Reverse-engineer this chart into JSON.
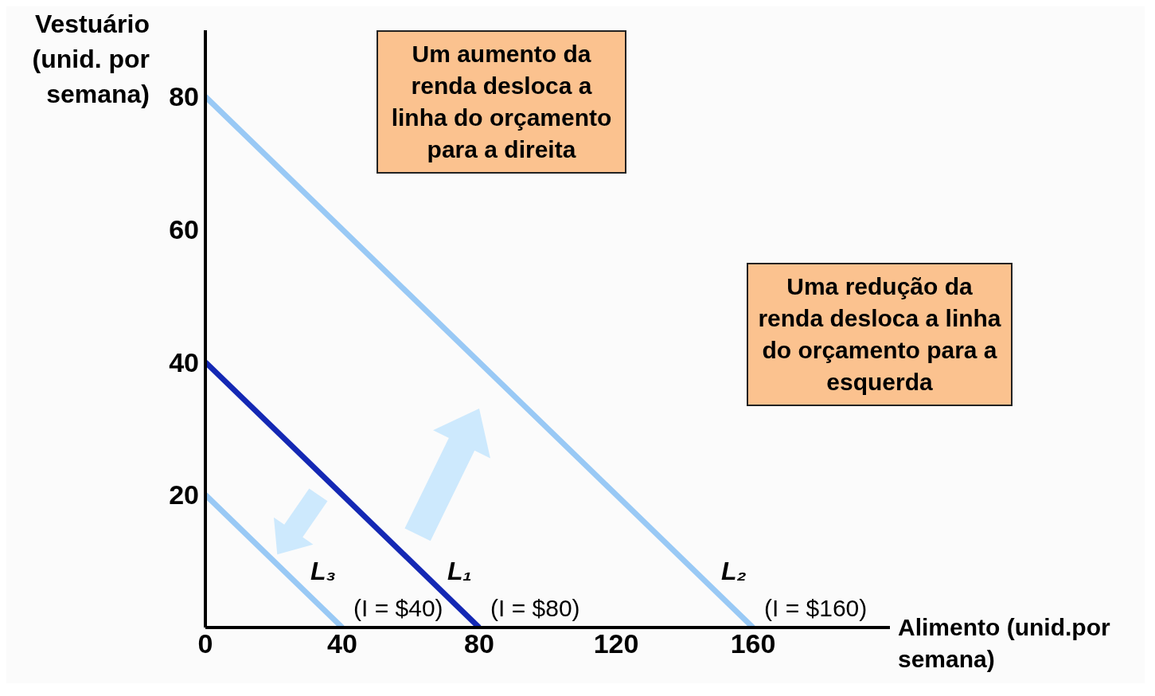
{
  "chart_data": {
    "type": "line",
    "xlabel": "Alimento (unid.por semana)",
    "ylabel": "Vestuário (unid. por semana)",
    "series": [
      {
        "name": "L₁",
        "color": "#1428b4",
        "x": [
          0,
          80
        ],
        "values": [
          40,
          0
        ]
      },
      {
        "name": "L₂",
        "color": "#99c9f5",
        "x": [
          0,
          160
        ],
        "values": [
          80,
          0
        ]
      },
      {
        "name": "L₃",
        "color": "#99c9f5",
        "x": [
          0,
          40
        ],
        "values": [
          20,
          0
        ]
      }
    ],
    "xlim": [
      0,
      200
    ],
    "xticks": [
      0,
      40,
      80,
      120,
      160
    ],
    "ylim": [
      0,
      90
    ],
    "yticks": [
      20,
      40,
      60,
      80
    ],
    "grid": false,
    "legend": false,
    "marker": "none",
    "line_style": "solid",
    "annotations": [
      "Um aumento da renda desloca a linha do orçamento para a direita",
      "Uma redução da renda desloca a linha do orçamento para a esquerda",
      {
        "text": "(I = $40)",
        "x": 40,
        "y": 0
      },
      {
        "text": "(I = $80)",
        "x": 80,
        "y": 0
      },
      {
        "text": "(I = $160)",
        "x": 160,
        "y": 0
      }
    ]
  }
}
